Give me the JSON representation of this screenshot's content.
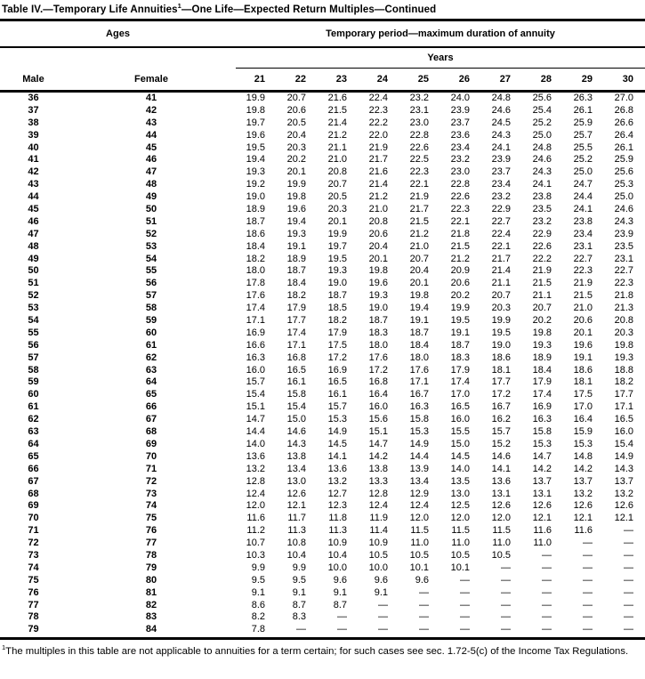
{
  "title": {
    "prefix": "Table IV.—Temporary Life Annuities",
    "footnote_marker": "1",
    "suffix": "—One Life—Expected Return Multiples—Continued"
  },
  "table": {
    "ages_group_label": "Ages",
    "period_group_label": "Temporary period—maximum duration of annuity",
    "years_group_label": "Years",
    "male_column_label": "Male",
    "female_column_label": "Female",
    "year_columns": [
      "21",
      "22",
      "23",
      "24",
      "25",
      "26",
      "27",
      "28",
      "29",
      "30"
    ],
    "missing_value_symbol": "—",
    "rows": [
      {
        "male": "36",
        "female": "41",
        "values": [
          "19.9",
          "20.7",
          "21.6",
          "22.4",
          "23.2",
          "24.0",
          "24.8",
          "25.6",
          "26.3",
          "27.0"
        ]
      },
      {
        "male": "37",
        "female": "42",
        "values": [
          "19.8",
          "20.6",
          "21.5",
          "22.3",
          "23.1",
          "23.9",
          "24.6",
          "25.4",
          "26.1",
          "26.8"
        ]
      },
      {
        "male": "38",
        "female": "43",
        "values": [
          "19.7",
          "20.5",
          "21.4",
          "22.2",
          "23.0",
          "23.7",
          "24.5",
          "25.2",
          "25.9",
          "26.6"
        ]
      },
      {
        "male": "39",
        "female": "44",
        "values": [
          "19.6",
          "20.4",
          "21.2",
          "22.0",
          "22.8",
          "23.6",
          "24.3",
          "25.0",
          "25.7",
          "26.4"
        ]
      },
      {
        "male": "40",
        "female": "45",
        "values": [
          "19.5",
          "20.3",
          "21.1",
          "21.9",
          "22.6",
          "23.4",
          "24.1",
          "24.8",
          "25.5",
          "26.1"
        ]
      },
      {
        "male": "41",
        "female": "46",
        "values": [
          "19.4",
          "20.2",
          "21.0",
          "21.7",
          "22.5",
          "23.2",
          "23.9",
          "24.6",
          "25.2",
          "25.9"
        ]
      },
      {
        "male": "42",
        "female": "47",
        "values": [
          "19.3",
          "20.1",
          "20.8",
          "21.6",
          "22.3",
          "23.0",
          "23.7",
          "24.3",
          "25.0",
          "25.6"
        ]
      },
      {
        "male": "43",
        "female": "48",
        "values": [
          "19.2",
          "19.9",
          "20.7",
          "21.4",
          "22.1",
          "22.8",
          "23.4",
          "24.1",
          "24.7",
          "25.3"
        ]
      },
      {
        "male": "44",
        "female": "49",
        "values": [
          "19.0",
          "19.8",
          "20.5",
          "21.2",
          "21.9",
          "22.6",
          "23.2",
          "23.8",
          "24.4",
          "25.0"
        ]
      },
      {
        "male": "45",
        "female": "50",
        "values": [
          "18.9",
          "19.6",
          "20.3",
          "21.0",
          "21.7",
          "22.3",
          "22.9",
          "23.5",
          "24.1",
          "24.6"
        ]
      },
      {
        "male": "46",
        "female": "51",
        "values": [
          "18.7",
          "19.4",
          "20.1",
          "20.8",
          "21.5",
          "22.1",
          "22.7",
          "23.2",
          "23.8",
          "24.3"
        ]
      },
      {
        "male": "47",
        "female": "52",
        "values": [
          "18.6",
          "19.3",
          "19.9",
          "20.6",
          "21.2",
          "21.8",
          "22.4",
          "22.9",
          "23.4",
          "23.9"
        ]
      },
      {
        "male": "48",
        "female": "53",
        "values": [
          "18.4",
          "19.1",
          "19.7",
          "20.4",
          "21.0",
          "21.5",
          "22.1",
          "22.6",
          "23.1",
          "23.5"
        ]
      },
      {
        "male": "49",
        "female": "54",
        "values": [
          "18.2",
          "18.9",
          "19.5",
          "20.1",
          "20.7",
          "21.2",
          "21.7",
          "22.2",
          "22.7",
          "23.1"
        ]
      },
      {
        "male": "50",
        "female": "55",
        "values": [
          "18.0",
          "18.7",
          "19.3",
          "19.8",
          "20.4",
          "20.9",
          "21.4",
          "21.9",
          "22.3",
          "22.7"
        ]
      },
      {
        "male": "51",
        "female": "56",
        "values": [
          "17.8",
          "18.4",
          "19.0",
          "19.6",
          "20.1",
          "20.6",
          "21.1",
          "21.5",
          "21.9",
          "22.3"
        ]
      },
      {
        "male": "52",
        "female": "57",
        "values": [
          "17.6",
          "18.2",
          "18.7",
          "19.3",
          "19.8",
          "20.2",
          "20.7",
          "21.1",
          "21.5",
          "21.8"
        ]
      },
      {
        "male": "53",
        "female": "58",
        "values": [
          "17.4",
          "17.9",
          "18.5",
          "19.0",
          "19.4",
          "19.9",
          "20.3",
          "20.7",
          "21.0",
          "21.3"
        ]
      },
      {
        "male": "54",
        "female": "59",
        "values": [
          "17.1",
          "17.7",
          "18.2",
          "18.7",
          "19.1",
          "19.5",
          "19.9",
          "20.2",
          "20.6",
          "20.8"
        ]
      },
      {
        "male": "55",
        "female": "60",
        "values": [
          "16.9",
          "17.4",
          "17.9",
          "18.3",
          "18.7",
          "19.1",
          "19.5",
          "19.8",
          "20.1",
          "20.3"
        ]
      },
      {
        "male": "56",
        "female": "61",
        "values": [
          "16.6",
          "17.1",
          "17.5",
          "18.0",
          "18.4",
          "18.7",
          "19.0",
          "19.3",
          "19.6",
          "19.8"
        ]
      },
      {
        "male": "57",
        "female": "62",
        "values": [
          "16.3",
          "16.8",
          "17.2",
          "17.6",
          "18.0",
          "18.3",
          "18.6",
          "18.9",
          "19.1",
          "19.3"
        ]
      },
      {
        "male": "58",
        "female": "63",
        "values": [
          "16.0",
          "16.5",
          "16.9",
          "17.2",
          "17.6",
          "17.9",
          "18.1",
          "18.4",
          "18.6",
          "18.8"
        ]
      },
      {
        "male": "59",
        "female": "64",
        "values": [
          "15.7",
          "16.1",
          "16.5",
          "16.8",
          "17.1",
          "17.4",
          "17.7",
          "17.9",
          "18.1",
          "18.2"
        ]
      },
      {
        "male": "60",
        "female": "65",
        "values": [
          "15.4",
          "15.8",
          "16.1",
          "16.4",
          "16.7",
          "17.0",
          "17.2",
          "17.4",
          "17.5",
          "17.7"
        ]
      },
      {
        "male": "61",
        "female": "66",
        "values": [
          "15.1",
          "15.4",
          "15.7",
          "16.0",
          "16.3",
          "16.5",
          "16.7",
          "16.9",
          "17.0",
          "17.1"
        ]
      },
      {
        "male": "62",
        "female": "67",
        "values": [
          "14.7",
          "15.0",
          "15.3",
          "15.6",
          "15.8",
          "16.0",
          "16.2",
          "16.3",
          "16.4",
          "16.5"
        ]
      },
      {
        "male": "63",
        "female": "68",
        "values": [
          "14.4",
          "14.6",
          "14.9",
          "15.1",
          "15.3",
          "15.5",
          "15.7",
          "15.8",
          "15.9",
          "16.0"
        ]
      },
      {
        "male": "64",
        "female": "69",
        "values": [
          "14.0",
          "14.3",
          "14.5",
          "14.7",
          "14.9",
          "15.0",
          "15.2",
          "15.3",
          "15.3",
          "15.4"
        ]
      },
      {
        "male": "65",
        "female": "70",
        "values": [
          "13.6",
          "13.8",
          "14.1",
          "14.2",
          "14.4",
          "14.5",
          "14.6",
          "14.7",
          "14.8",
          "14.9"
        ]
      },
      {
        "male": "66",
        "female": "71",
        "values": [
          "13.2",
          "13.4",
          "13.6",
          "13.8",
          "13.9",
          "14.0",
          "14.1",
          "14.2",
          "14.2",
          "14.3"
        ]
      },
      {
        "male": "67",
        "female": "72",
        "values": [
          "12.8",
          "13.0",
          "13.2",
          "13.3",
          "13.4",
          "13.5",
          "13.6",
          "13.7",
          "13.7",
          "13.7"
        ]
      },
      {
        "male": "68",
        "female": "73",
        "values": [
          "12.4",
          "12.6",
          "12.7",
          "12.8",
          "12.9",
          "13.0",
          "13.1",
          "13.1",
          "13.2",
          "13.2"
        ]
      },
      {
        "male": "69",
        "female": "74",
        "values": [
          "12.0",
          "12.1",
          "12.3",
          "12.4",
          "12.4",
          "12.5",
          "12.6",
          "12.6",
          "12.6",
          "12.6"
        ]
      },
      {
        "male": "70",
        "female": "75",
        "values": [
          "11.6",
          "11.7",
          "11.8",
          "11.9",
          "12.0",
          "12.0",
          "12.0",
          "12.1",
          "12.1",
          "12.1"
        ]
      },
      {
        "male": "71",
        "female": "76",
        "values": [
          "11.2",
          "11.3",
          "11.3",
          "11.4",
          "11.5",
          "11.5",
          "11.5",
          "11.6",
          "11.6",
          "—"
        ]
      },
      {
        "male": "72",
        "female": "77",
        "values": [
          "10.7",
          "10.8",
          "10.9",
          "10.9",
          "11.0",
          "11.0",
          "11.0",
          "11.0",
          "—",
          "—"
        ]
      },
      {
        "male": "73",
        "female": "78",
        "values": [
          "10.3",
          "10.4",
          "10.4",
          "10.5",
          "10.5",
          "10.5",
          "10.5",
          "—",
          "—",
          "—"
        ]
      },
      {
        "male": "74",
        "female": "79",
        "values": [
          "9.9",
          "9.9",
          "10.0",
          "10.0",
          "10.1",
          "10.1",
          "—",
          "—",
          "—",
          "—"
        ]
      },
      {
        "male": "75",
        "female": "80",
        "values": [
          "9.5",
          "9.5",
          "9.6",
          "9.6",
          "9.6",
          "—",
          "—",
          "—",
          "—",
          "—"
        ]
      },
      {
        "male": "76",
        "female": "81",
        "values": [
          "9.1",
          "9.1",
          "9.1",
          "9.1",
          "—",
          "—",
          "—",
          "—",
          "—",
          "—"
        ]
      },
      {
        "male": "77",
        "female": "82",
        "values": [
          "8.6",
          "8.7",
          "8.7",
          "—",
          "—",
          "—",
          "—",
          "—",
          "—",
          "—"
        ]
      },
      {
        "male": "78",
        "female": "83",
        "values": [
          "8.2",
          "8.3",
          "—",
          "—",
          "—",
          "—",
          "—",
          "—",
          "—",
          "—"
        ]
      },
      {
        "male": "79",
        "female": "84",
        "values": [
          "7.8",
          "—",
          "—",
          "—",
          "—",
          "—",
          "—",
          "—",
          "—",
          "—"
        ]
      }
    ]
  },
  "footnote": {
    "marker": "1",
    "text": "The multiples in this table are not applicable to annuities for a term certain; for such cases see sec. 1.72-5(c) of the Income Tax Regulations."
  },
  "colors": {
    "text": "#000000",
    "background": "#ffffff",
    "rule": "#000000"
  }
}
